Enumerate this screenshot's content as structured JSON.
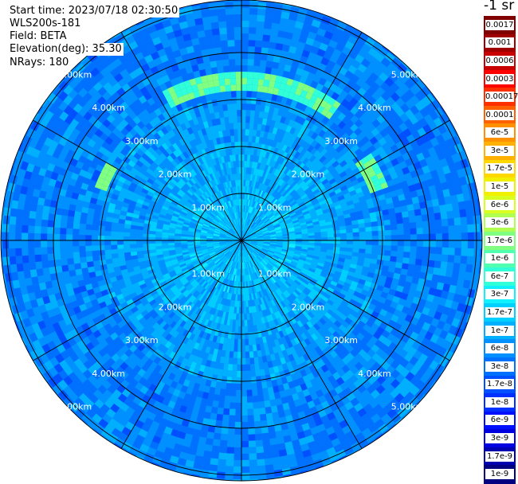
{
  "header": {
    "start_time": "Start time: 2023/07/18 02:30:50",
    "instrument": "WLS200s-181",
    "field": "Field: BETA",
    "elevation": "Elevation(deg): 35.30",
    "nrays": "NRays: 180"
  },
  "unit_label": "-1 sr",
  "range_rings": {
    "labels": [
      "1.00km",
      "2.00km",
      "3.00km",
      "4.00km",
      "5.00km"
    ]
  },
  "colorbar": {
    "labels": [
      "0.0017",
      "0.001",
      "0.0006",
      "0.0003",
      "0.00017",
      "0.0001",
      "6e-5",
      "3e-5",
      "1.7e-5",
      "1e-5",
      "6e-6",
      "3e-6",
      "1.7e-6",
      "1e-6",
      "6e-7",
      "3e-7",
      "1.7e-7",
      "1e-7",
      "6e-8",
      "3e-8",
      "1.7e-8",
      "1e-8",
      "6e-9",
      "3e-9",
      "1.7e-9",
      "1e-9"
    ],
    "colors": [
      "#800000",
      "#a00000",
      "#c80000",
      "#ff0000",
      "#ff3000",
      "#ff6000",
      "#ff9000",
      "#ffb000",
      "#ffd800",
      "#f0f000",
      "#d8ff20",
      "#b0ff50",
      "#80ff80",
      "#50ffb0",
      "#30ffd8",
      "#10f0ff",
      "#00d0ff",
      "#00b0ff",
      "#0090ff",
      "#0070ff",
      "#0050ff",
      "#0030ff",
      "#0010ff",
      "#0000e0",
      "#0000b0",
      "#000080"
    ]
  }
}
